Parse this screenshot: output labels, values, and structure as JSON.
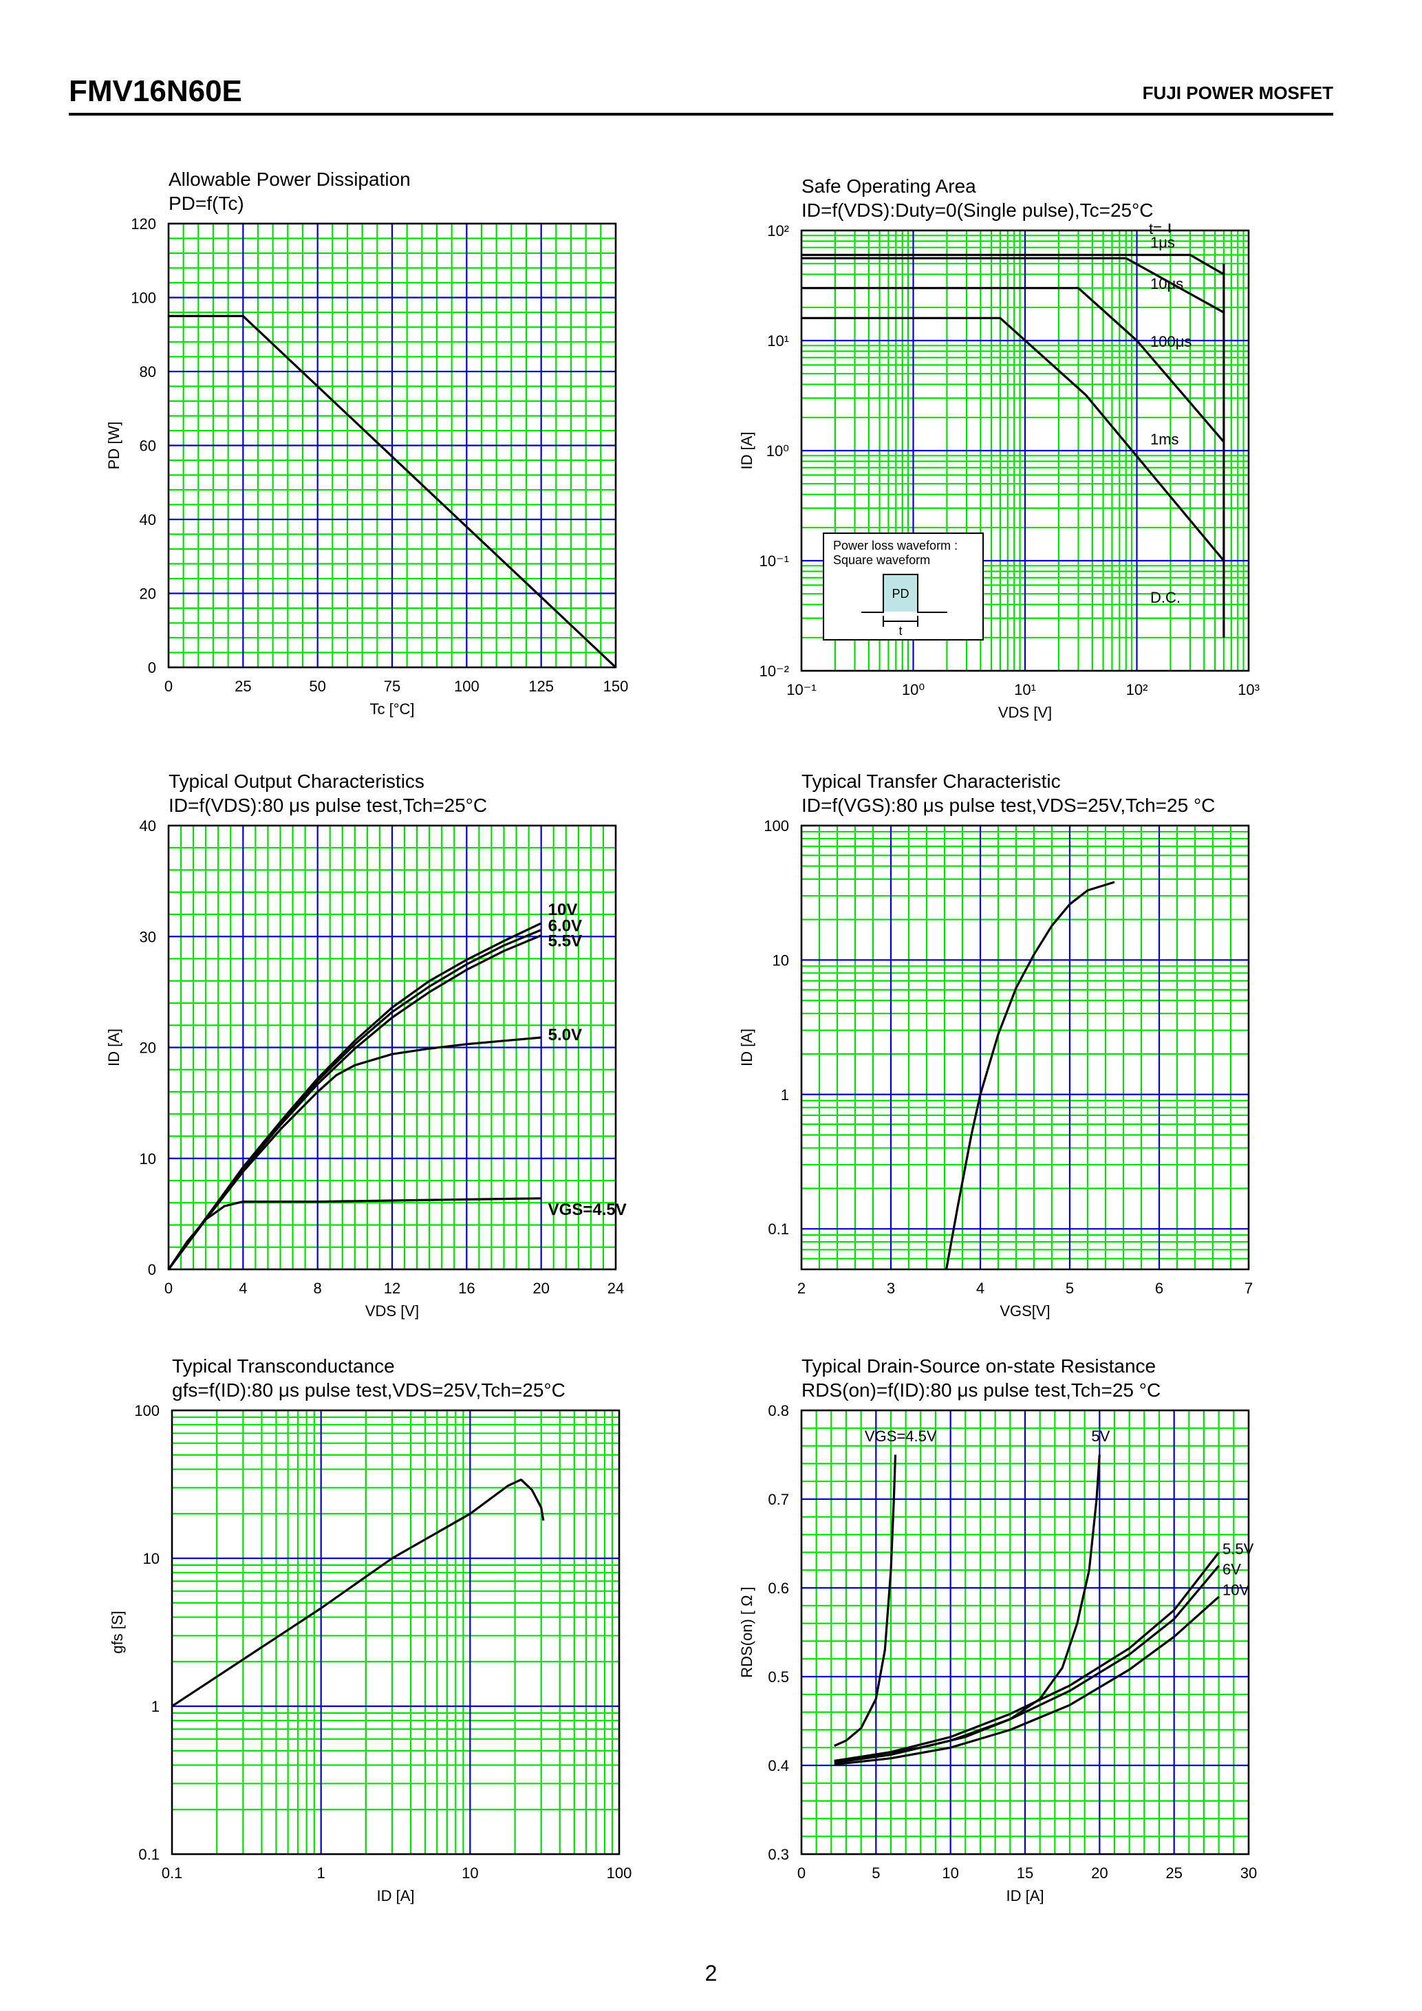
{
  "header": {
    "part_number": "FMV16N60E",
    "brand": "FUJI POWER MOSFET"
  },
  "footer": {
    "page_number": "2"
  },
  "colors": {
    "grid_minor": "#00e000",
    "grid_major": "#0000cc",
    "curve": "#000000",
    "pd_box": "#bfe6e6"
  },
  "chart_data": [
    {
      "id": "pd",
      "type": "line",
      "title": "Allowable Power Dissipation",
      "subtitle": "PD=f(Tc)",
      "xlabel": "Tc [°C]",
      "ylabel": "PD [W]",
      "xlim": [
        0,
        150
      ],
      "ylim": [
        0,
        120
      ],
      "x_scale": "linear",
      "y_scale": "linear",
      "x_ticks": [
        0,
        25,
        50,
        75,
        100,
        125,
        150
      ],
      "y_ticks": [
        0,
        20,
        40,
        60,
        80,
        100,
        120
      ],
      "x_tick_labels": [
        "0",
        "25",
        "50",
        "75",
        "100",
        "125",
        "150"
      ],
      "y_tick_labels": [
        "0",
        "20",
        "40",
        "60",
        "80",
        "100",
        "120"
      ],
      "x_minor": 5,
      "y_minor": 5,
      "series": [
        {
          "values": [
            [
              0,
              95
            ],
            [
              25,
              95
            ],
            [
              150,
              0
            ]
          ]
        }
      ]
    },
    {
      "id": "soa",
      "type": "line",
      "title": "Safe Operating Area",
      "subtitle": "ID=f(VDS):Duty=0(Single pulse),Tc=25°C",
      "xlabel": "VDS [V]",
      "ylabel": "ID [A]",
      "xlim": [
        0.1,
        1000
      ],
      "ylim": [
        0.01,
        100
      ],
      "x_scale": "log",
      "y_scale": "log",
      "x_ticks": [
        0.1,
        1,
        10,
        100,
        1000
      ],
      "y_ticks": [
        0.01,
        0.1,
        1,
        10,
        100
      ],
      "x_tick_labels": [
        "10⁻¹",
        "10⁰",
        "10¹",
        "10²",
        "10³"
      ],
      "y_tick_labels": [
        "10⁻²",
        "10⁻¹",
        "10⁰",
        "10¹",
        "10²"
      ],
      "series": [
        {
          "name": "t=1μs",
          "values": [
            [
              0.1,
              60
            ],
            [
              300,
              60
            ],
            [
              600,
              40
            ]
          ]
        },
        {
          "name": "10μs",
          "values": [
            [
              0.1,
              56
            ],
            [
              80,
              56
            ],
            [
              600,
              18
            ]
          ]
        },
        {
          "name": "100μs",
          "values": [
            [
              0.1,
              30
            ],
            [
              30,
              30
            ],
            [
              100,
              10
            ],
            [
              600,
              1.2
            ]
          ]
        },
        {
          "name": "1ms",
          "values": [
            [
              0.1,
              16
            ],
            [
              6,
              16
            ],
            [
              35,
              3.2
            ],
            [
              600,
              0.1
            ]
          ]
        },
        {
          "name": "D.C.",
          "values": [
            [
              600,
              0.02
            ],
            [
              600,
              50
            ]
          ]
        }
      ],
      "annotations": [
        "t=",
        "1μs",
        "10μs",
        "100μs",
        "1ms",
        "D.C."
      ],
      "inset": {
        "title": "Power loss waveform :",
        "subtitle": "Square waveform",
        "pd_label": "PD",
        "t_label": "t"
      }
    },
    {
      "id": "output",
      "type": "line",
      "title": "Typical Output Characteristics",
      "subtitle": "ID=f(VDS):80 μs pulse test,Tch=25°C",
      "xlabel": "VDS [V]",
      "ylabel": "ID [A]",
      "xlim": [
        0,
        24
      ],
      "ylim": [
        0,
        40
      ],
      "x_scale": "linear",
      "y_scale": "linear",
      "x_ticks": [
        0,
        4,
        8,
        12,
        16,
        20,
        24
      ],
      "y_ticks": [
        0,
        10,
        20,
        30,
        40
      ],
      "x_tick_labels": [
        "0",
        "4",
        "8",
        "12",
        "16",
        "20",
        "24"
      ],
      "y_tick_labels": [
        "0",
        "10",
        "20",
        "30",
        "40"
      ],
      "x_minor": 6,
      "y_minor": 5,
      "series": [
        {
          "name": "10V",
          "values": [
            [
              0,
              0
            ],
            [
              2,
              4.6
            ],
            [
              4,
              9.2
            ],
            [
              6,
              13.3
            ],
            [
              8,
              17.2
            ],
            [
              10,
              20.6
            ],
            [
              12,
              23.6
            ],
            [
              14,
              26.0
            ],
            [
              16,
              27.9
            ],
            [
              18,
              29.6
            ],
            [
              20,
              31.2
            ]
          ]
        },
        {
          "name": "6.0V",
          "values": [
            [
              0,
              0
            ],
            [
              2,
              4.6
            ],
            [
              4,
              9.1
            ],
            [
              6,
              13.2
            ],
            [
              8,
              17.0
            ],
            [
              10,
              20.3
            ],
            [
              12,
              23.2
            ],
            [
              14,
              25.5
            ],
            [
              16,
              27.5
            ],
            [
              18,
              29.2
            ],
            [
              20,
              30.6
            ]
          ]
        },
        {
          "name": "5.5V",
          "values": [
            [
              0,
              0
            ],
            [
              2,
              4.6
            ],
            [
              4,
              9.0
            ],
            [
              6,
              13.0
            ],
            [
              8,
              16.7
            ],
            [
              10,
              19.9
            ],
            [
              12,
              22.7
            ],
            [
              14,
              25.0
            ],
            [
              16,
              27.0
            ],
            [
              18,
              28.7
            ],
            [
              20,
              30.1
            ]
          ]
        },
        {
          "name": "5.0V",
          "values": [
            [
              0,
              0
            ],
            [
              2,
              4.5
            ],
            [
              4,
              8.8
            ],
            [
              6,
              12.6
            ],
            [
              8,
              16.0
            ],
            [
              9,
              17.5
            ],
            [
              10,
              18.4
            ],
            [
              12,
              19.4
            ],
            [
              14,
              19.9
            ],
            [
              16,
              20.3
            ],
            [
              18,
              20.6
            ],
            [
              20,
              20.9
            ]
          ]
        },
        {
          "name": "VGS=4.5V",
          "values": [
            [
              0,
              0
            ],
            [
              1,
              2.5
            ],
            [
              2,
              4.5
            ],
            [
              3,
              5.7
            ],
            [
              4,
              6.1
            ],
            [
              8,
              6.1
            ],
            [
              12,
              6.2
            ],
            [
              16,
              6.3
            ],
            [
              20,
              6.4
            ]
          ]
        }
      ]
    },
    {
      "id": "transfer",
      "type": "line",
      "title": "Typical Transfer Characteristic",
      "subtitle": "ID=f(VGS):80 μs pulse test,VDS=25V,Tch=25 °C",
      "xlabel": "VGS[V]",
      "ylabel": "ID [A]",
      "xlim": [
        2,
        7
      ],
      "ylim": [
        0.05,
        100
      ],
      "x_scale": "linear",
      "y_scale": "log",
      "x_ticks": [
        2,
        3,
        4,
        5,
        6,
        7
      ],
      "y_ticks": [
        0.1,
        1,
        10,
        100
      ],
      "x_tick_labels": [
        "2",
        "3",
        "4",
        "5",
        "6",
        "7"
      ],
      "y_tick_labels": [
        "0.1",
        "1",
        "10",
        "100"
      ],
      "x_minor": 5,
      "series": [
        {
          "values": [
            [
              3.62,
              0.05
            ],
            [
              3.75,
              0.15
            ],
            [
              3.9,
              0.5
            ],
            [
              4.0,
              1.0
            ],
            [
              4.2,
              2.8
            ],
            [
              4.4,
              6.2
            ],
            [
              4.6,
              11
            ],
            [
              4.8,
              18
            ],
            [
              5.0,
              26
            ],
            [
              5.2,
              33
            ],
            [
              5.5,
              38
            ]
          ]
        }
      ]
    },
    {
      "id": "gfs",
      "type": "line",
      "title": "Typical Transconductance",
      "subtitle": "gfs=f(ID):80 μs pulse test,VDS=25V,Tch=25°C",
      "xlabel": "ID [A]",
      "ylabel": "gfs [S]",
      "xlim": [
        0.1,
        100
      ],
      "ylim": [
        0.1,
        100
      ],
      "x_scale": "log",
      "y_scale": "log",
      "x_ticks": [
        0.1,
        1,
        10,
        100
      ],
      "y_ticks": [
        0.1,
        1,
        10,
        100
      ],
      "x_tick_labels": [
        "0.1",
        "1",
        "10",
        "100"
      ],
      "y_tick_labels": [
        "0.1",
        "1",
        "10",
        "100"
      ],
      "series": [
        {
          "values": [
            [
              0.1,
              1.0
            ],
            [
              1,
              4.6
            ],
            [
              3,
              10
            ],
            [
              10,
              20
            ],
            [
              18,
              31
            ],
            [
              22,
              34
            ],
            [
              26,
              29
            ],
            [
              30,
              22
            ],
            [
              31,
              18
            ]
          ]
        }
      ]
    },
    {
      "id": "rds",
      "type": "line",
      "title": "Typical Drain-Source on-state Resistance",
      "subtitle": "RDS(on)=f(ID):80 μs pulse test,Tch=25 °C",
      "xlabel": "ID [A]",
      "ylabel": "RDS(on) [ Ω ]",
      "xlim": [
        0,
        30
      ],
      "ylim": [
        0.3,
        0.8
      ],
      "x_scale": "linear",
      "y_scale": "linear",
      "x_ticks": [
        0,
        5,
        10,
        15,
        20,
        25,
        30
      ],
      "y_ticks": [
        0.3,
        0.4,
        0.5,
        0.6,
        0.7,
        0.8
      ],
      "x_tick_labels": [
        "0",
        "5",
        "10",
        "15",
        "20",
        "25",
        "30"
      ],
      "y_tick_labels": [
        "0.3",
        "0.4",
        "0.5",
        "0.6",
        "0.7",
        "0.8"
      ],
      "x_minor": 5,
      "y_minor": 5,
      "series": [
        {
          "name": "VGS=4.5V",
          "values": [
            [
              2.2,
              0.422
            ],
            [
              3,
              0.428
            ],
            [
              4,
              0.442
            ],
            [
              5,
              0.475
            ],
            [
              5.6,
              0.53
            ],
            [
              6.0,
              0.62
            ],
            [
              6.2,
              0.7
            ],
            [
              6.3,
              0.75
            ]
          ]
        },
        {
          "name": "5V",
          "values": [
            [
              2.2,
              0.405
            ],
            [
              5,
              0.412
            ],
            [
              8,
              0.42
            ],
            [
              11,
              0.432
            ],
            [
              14,
              0.452
            ],
            [
              16,
              0.475
            ],
            [
              17.5,
              0.51
            ],
            [
              18.5,
              0.56
            ],
            [
              19.3,
              0.62
            ],
            [
              19.8,
              0.7
            ],
            [
              20,
              0.75
            ]
          ]
        },
        {
          "name": "5.5V",
          "values": [
            [
              2.2,
              0.405
            ],
            [
              6,
              0.415
            ],
            [
              10,
              0.432
            ],
            [
              14,
              0.458
            ],
            [
              18,
              0.49
            ],
            [
              22,
              0.532
            ],
            [
              25,
              0.575
            ],
            [
              28,
              0.64
            ]
          ]
        },
        {
          "name": "6V",
          "values": [
            [
              2.2,
              0.403
            ],
            [
              6,
              0.412
            ],
            [
              10,
              0.428
            ],
            [
              14,
              0.452
            ],
            [
              18,
              0.484
            ],
            [
              22,
              0.525
            ],
            [
              25,
              0.565
            ],
            [
              28,
              0.625
            ]
          ]
        },
        {
          "name": "10V",
          "values": [
            [
              2.2,
              0.401
            ],
            [
              6,
              0.408
            ],
            [
              10,
              0.42
            ],
            [
              14,
              0.44
            ],
            [
              18,
              0.468
            ],
            [
              22,
              0.508
            ],
            [
              25,
              0.545
            ],
            [
              28,
              0.59
            ]
          ]
        }
      ]
    }
  ]
}
